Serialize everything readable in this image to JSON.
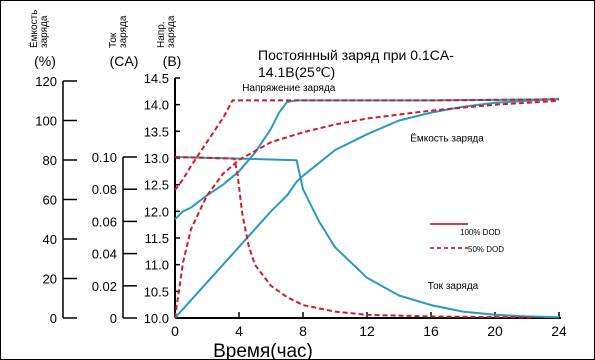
{
  "chart_data": {
    "type": "line",
    "title": "Постоянный заряд при 0.1CA-14.1В(25℃)",
    "title_lines": [
      "Постоянный заряд при 0.1CA-",
      "14.1В(25℃)"
    ],
    "xlabel": "Время(час)",
    "x_ticks": [
      "0",
      "4",
      "8",
      "12",
      "16",
      "20",
      "24"
    ],
    "xlim": [
      0,
      24
    ],
    "axes": [
      {
        "key": "capacity",
        "header": [
          "Ёмкость",
          "заряда"
        ],
        "unit": "(%)",
        "ticks": [
          "0",
          "20",
          "40",
          "60",
          "80",
          "100",
          "120"
        ],
        "ylim": [
          0,
          120
        ]
      },
      {
        "key": "current",
        "header": [
          "Ток",
          "заряда"
        ],
        "unit": "(CA)",
        "ticks": [
          "0",
          "0.02",
          "0.04",
          "0.06",
          "0.08",
          "0.10"
        ],
        "ylim": [
          0,
          0.1
        ]
      },
      {
        "key": "voltage",
        "header": [
          "Напр.",
          "заряда"
        ],
        "unit": "(В)",
        "ticks": [
          "10.0",
          "10.5",
          "11.0",
          "11.5",
          "12.0",
          "12.5",
          "13.0",
          "13.5",
          "14.0",
          "14.5"
        ],
        "ylim": [
          10.0,
          14.5
        ]
      }
    ],
    "curve_labels": [
      {
        "text": "Напряжение заряда",
        "x": 4.2,
        "y": 14.33
      },
      {
        "text": "Ёмкость заряда",
        "x": 14.7,
        "y": 13.38
      },
      {
        "text": "Ток заряда",
        "x": 15.8,
        "y": 10.62
      }
    ],
    "legend": [
      {
        "text": "100% DOD",
        "style": "solid",
        "color": "#c00000"
      },
      {
        "text": "50% DOD",
        "style": "dashed",
        "color": "#c00000"
      }
    ],
    "colors": {
      "dod100": "#2b97c6",
      "dod50": "#cc1e24"
    },
    "series": [
      {
        "group": "Напряжение заряда",
        "dod": "100% DOD",
        "axis": "voltage",
        "points": [
          [
            0,
            11.85
          ],
          [
            0.5,
            12.0
          ],
          [
            1,
            12.07
          ],
          [
            2,
            12.3
          ],
          [
            3,
            12.5
          ],
          [
            4,
            12.75
          ],
          [
            5,
            13.1
          ],
          [
            6,
            13.55
          ],
          [
            6.5,
            13.85
          ],
          [
            7,
            14.05
          ],
          [
            7.6,
            14.08
          ],
          [
            10,
            14.08
          ],
          [
            16,
            14.08
          ],
          [
            24,
            14.1
          ]
        ]
      },
      {
        "group": "Ёмкость заряда",
        "dod": "100% DOD",
        "axis": "capacity",
        "points": [
          [
            0,
            0
          ],
          [
            1,
            9
          ],
          [
            2,
            18
          ],
          [
            3,
            27
          ],
          [
            4,
            36
          ],
          [
            5,
            45
          ],
          [
            6,
            54
          ],
          [
            7,
            62
          ],
          [
            7.6,
            69
          ],
          [
            8,
            72
          ],
          [
            10,
            85
          ],
          [
            12,
            93
          ],
          [
            14,
            100
          ],
          [
            16,
            104
          ],
          [
            18,
            107
          ],
          [
            20,
            109
          ],
          [
            22,
            110
          ],
          [
            24,
            111
          ]
        ]
      },
      {
        "group": "Ток заряда",
        "dod": "100% DOD",
        "axis": "current",
        "points": [
          [
            0,
            0.1
          ],
          [
            4,
            0.099
          ],
          [
            7.6,
            0.098
          ],
          [
            8,
            0.08
          ],
          [
            9,
            0.06
          ],
          [
            10,
            0.044
          ],
          [
            12,
            0.025
          ],
          [
            14,
            0.014
          ],
          [
            16,
            0.008
          ],
          [
            18,
            0.004
          ],
          [
            20,
            0.002
          ],
          [
            22,
            0.001
          ],
          [
            24,
            0.0005
          ]
        ]
      },
      {
        "group": "Напряжение заряда",
        "dod": "50% DOD",
        "axis": "voltage",
        "points": [
          [
            0,
            12.4
          ],
          [
            0.5,
            12.6
          ],
          [
            1,
            12.85
          ],
          [
            2,
            13.3
          ],
          [
            3,
            13.75
          ],
          [
            3.6,
            14.08
          ],
          [
            8,
            14.08
          ],
          [
            16,
            14.08
          ],
          [
            24,
            14.1
          ]
        ]
      },
      {
        "group": "Ёмкость заряда",
        "dod": "50% DOD",
        "axis": "capacity",
        "points": [
          [
            0,
            0
          ],
          [
            0.5,
            28
          ],
          [
            1,
            45
          ],
          [
            2,
            62
          ],
          [
            3,
            73
          ],
          [
            4,
            80
          ],
          [
            6,
            89
          ],
          [
            8,
            94
          ],
          [
            10,
            98
          ],
          [
            12,
            101
          ],
          [
            16,
            105
          ],
          [
            20,
            108
          ],
          [
            24,
            110
          ]
        ]
      },
      {
        "group": "Ток заряда",
        "dod": "50% DOD",
        "axis": "current",
        "points": [
          [
            0,
            0.1
          ],
          [
            3.7,
            0.099
          ],
          [
            3.9,
            0.09
          ],
          [
            4.2,
            0.065
          ],
          [
            4.6,
            0.045
          ],
          [
            5,
            0.033
          ],
          [
            6,
            0.02
          ],
          [
            7,
            0.013
          ],
          [
            8,
            0.008
          ],
          [
            10,
            0.004
          ],
          [
            12,
            0.002
          ],
          [
            16,
            0.001
          ],
          [
            22.5,
            0.0003
          ]
        ]
      }
    ]
  }
}
